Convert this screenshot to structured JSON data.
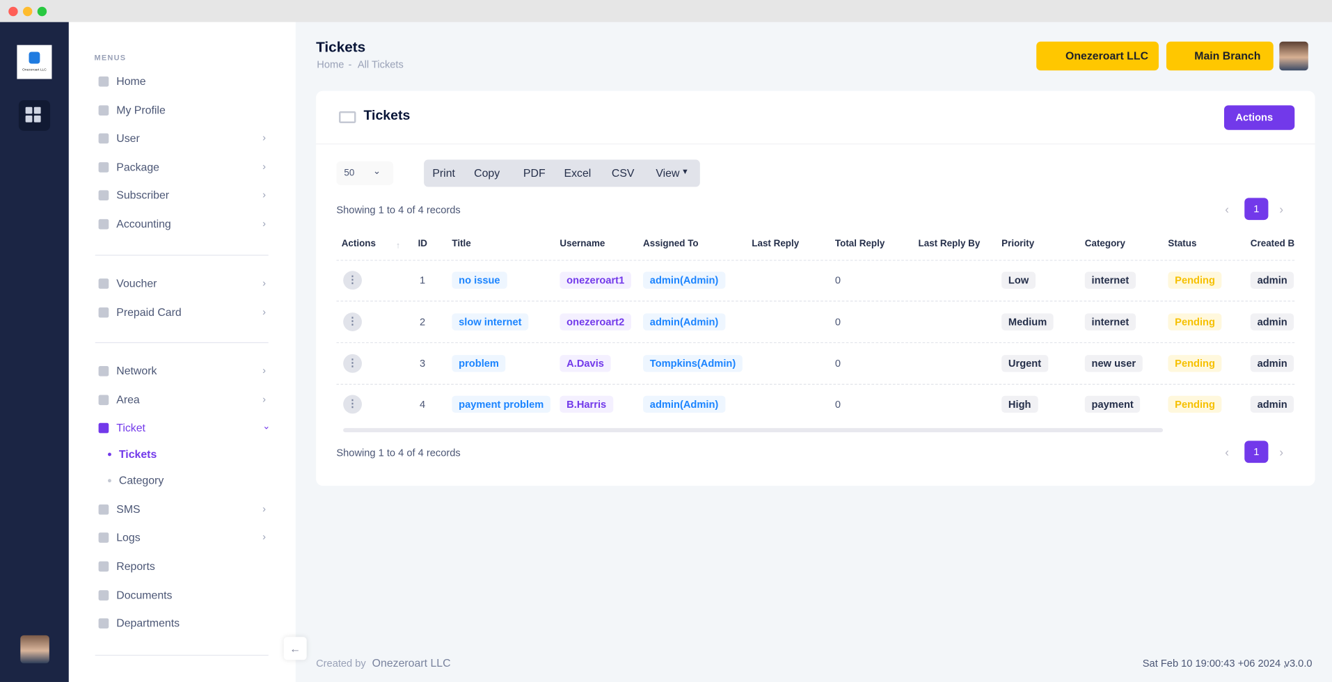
{
  "app": {
    "logo_text": "Onezeroart LLC"
  },
  "sidebar": {
    "section_label": "MENUS",
    "groups": [
      [
        "Home",
        "My Profile",
        "User",
        "Package",
        "Subscriber",
        "Accounting"
      ],
      [
        "Voucher",
        "Prepaid Card"
      ],
      [
        "Network",
        "Area",
        "Ticket",
        "SMS",
        "Logs",
        "Reports",
        "Documents",
        "Departments"
      ]
    ],
    "ticket_submenu": [
      "Tickets",
      "Category"
    ]
  },
  "header": {
    "title": "Tickets",
    "breadcrumb": [
      "Home",
      "All Tickets"
    ],
    "breadcrumb_separator": "-",
    "company_button": "Onezeroart LLC",
    "branch_button": "Main Branch"
  },
  "card": {
    "title": "Tickets",
    "actions_button": "Actions",
    "page_size": "50",
    "export_buttons": [
      "Print",
      "Copy",
      "PDF",
      "Excel",
      "CSV",
      "View"
    ],
    "records_info": "Showing 1 to 4 of 4 records",
    "current_page": "1"
  },
  "table": {
    "columns": [
      "Actions",
      "ID",
      "Title",
      "Username",
      "Assigned To",
      "Last Reply",
      "Total Reply",
      "Last Reply By",
      "Priority",
      "Category",
      "Status",
      "Created By"
    ],
    "rows": [
      {
        "id": "1",
        "title": "no issue",
        "username": "onezeroart1",
        "assigned_to": "admin(Admin)",
        "total_reply": "0",
        "priority": "Low",
        "category": "internet",
        "status": "Pending",
        "created_by": "admin"
      },
      {
        "id": "2",
        "title": "slow internet",
        "username": "onezeroart2",
        "assigned_to": "admin(Admin)",
        "total_reply": "0",
        "priority": "Medium",
        "category": "internet",
        "status": "Pending",
        "created_by": "admin"
      },
      {
        "id": "3",
        "title": "problem",
        "username": "A.Davis",
        "assigned_to": "Tompkins(Admin)",
        "total_reply": "0",
        "priority": "Urgent",
        "category": "new user",
        "status": "Pending",
        "created_by": "admin"
      },
      {
        "id": "4",
        "title": "payment problem",
        "username": "B.Harris",
        "assigned_to": "admin(Admin)",
        "total_reply": "0",
        "priority": "High",
        "category": "payment",
        "status": "Pending",
        "created_by": "admin"
      }
    ]
  },
  "footer": {
    "created_by_label": "Created by",
    "company": "Onezeroart LLC",
    "timestamp": "Sat Feb 10 19:00:43 +06 2024 ,",
    "version": "v3.0.0"
  }
}
